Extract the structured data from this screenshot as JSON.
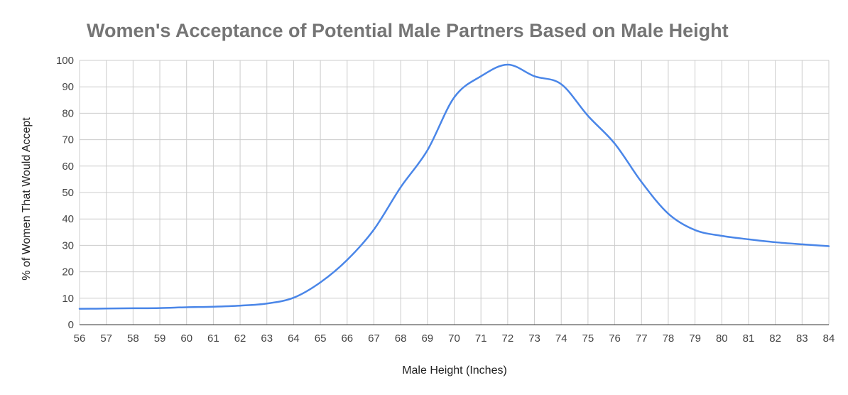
{
  "chart_data": {
    "type": "line",
    "title": "Women's Acceptance of Potential Male Partners Based on Male Height",
    "xlabel": "Male Height (Inches)",
    "ylabel": "% of Women That Would Accept",
    "xlim": [
      56,
      84
    ],
    "ylim": [
      0,
      100
    ],
    "x_ticks": [
      56,
      57,
      58,
      59,
      60,
      61,
      62,
      63,
      64,
      65,
      66,
      67,
      68,
      69,
      70,
      71,
      72,
      73,
      74,
      75,
      76,
      77,
      78,
      79,
      80,
      81,
      82,
      83,
      84
    ],
    "y_ticks": [
      0,
      10,
      20,
      30,
      40,
      50,
      60,
      70,
      80,
      90,
      100
    ],
    "grid": true,
    "colors": {
      "series": "#4a86e8"
    },
    "series": [
      {
        "x": [
          56,
          57,
          58,
          59,
          60,
          61,
          62,
          63,
          64,
          65,
          66,
          67,
          68,
          69,
          70,
          71,
          72,
          73,
          74,
          75,
          76,
          77,
          78,
          79,
          80,
          81,
          82,
          83,
          84
        ],
        "values": [
          6,
          6.1,
          6.2,
          6.3,
          6.6,
          6.8,
          7.2,
          8,
          10.2,
          16,
          24.5,
          36,
          52,
          66,
          86,
          94,
          98.4,
          94,
          91,
          79,
          68.5,
          54,
          42,
          35.8,
          33.6,
          32.3,
          31.2,
          30.4,
          29.7
        ]
      }
    ]
  }
}
